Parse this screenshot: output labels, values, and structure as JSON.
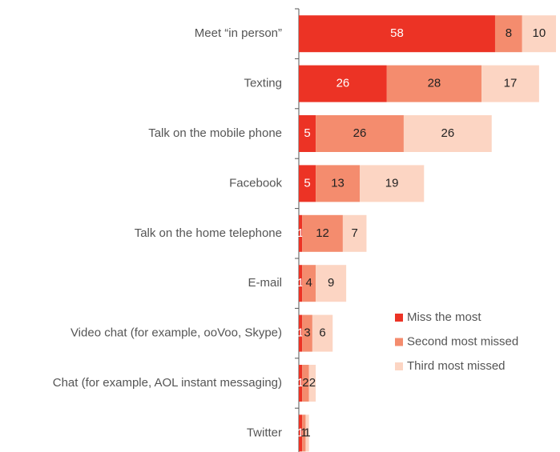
{
  "chart_data": {
    "type": "stacked-bar-horizontal",
    "categories": [
      "Meet “in person”",
      "Texting",
      "Talk on the mobile phone",
      "Facebook",
      "Talk on the home telephone",
      "E-mail",
      "Video chat (for example, ooVoo, Skype)",
      "Chat (for example, AOL instant messaging)",
      "Twitter"
    ],
    "series": [
      {
        "name": "Miss the most",
        "color": "#ec3325",
        "values": [
          58,
          26,
          5,
          5,
          1,
          1,
          1,
          1,
          1
        ]
      },
      {
        "name": "Second most missed",
        "color": "#f48c6e",
        "values": [
          8,
          28,
          26,
          13,
          12,
          4,
          3,
          2,
          1
        ]
      },
      {
        "name": "Third most missed",
        "color": "#fcd5c3",
        "values": [
          10,
          17,
          26,
          19,
          7,
          9,
          6,
          2,
          1
        ]
      }
    ],
    "legend": "lower right"
  }
}
